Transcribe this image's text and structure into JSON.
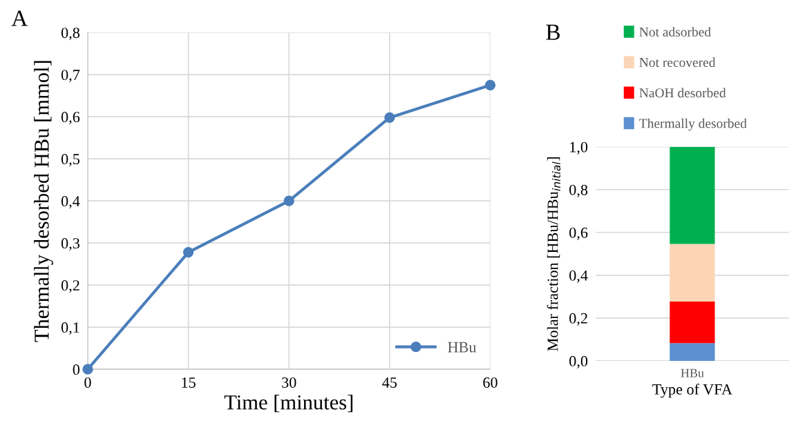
{
  "chart_data": [
    {
      "type": "line",
      "annotations": [
        "A"
      ],
      "xlabel": "Time [minutes]",
      "ylabel": "Thermally desorbed HBu [mmol]",
      "x": [
        0,
        15,
        30,
        45,
        60
      ],
      "series": [
        {
          "name": "HBu",
          "color": "#4a7ebb",
          "values": [
            0,
            0.278,
            0.4,
            0.598,
            0.675
          ]
        }
      ],
      "xlim": [
        0,
        60
      ],
      "xticks": [
        0,
        15,
        30,
        45,
        60
      ],
      "ylim": [
        0,
        0.8
      ],
      "yticks": [
        0,
        {
          "value": 0.1,
          "label": "0,1"
        },
        {
          "value": 0.2,
          "label": "0,2"
        },
        {
          "value": 0.3,
          "label": "0,3"
        },
        {
          "value": 0.4,
          "label": "0,4"
        },
        {
          "value": 0.5,
          "label": "0,5"
        },
        {
          "value": 0.6,
          "label": "0,6"
        },
        {
          "value": 0.7,
          "label": "0,7"
        },
        {
          "value": 0.8,
          "label": "0,8"
        }
      ],
      "grid": true,
      "legend": "bottom right",
      "marker": "circle",
      "line_style": "solid"
    },
    {
      "type": "bar",
      "stacked": true,
      "annotations": [
        "B"
      ],
      "xlabel": "Type of VFA",
      "ylabel": "Molar fraction [HBu/HBu$_{initial}$]",
      "categories": [
        "HBu"
      ],
      "series": [
        {
          "name": "Thermally desorbed",
          "color": "#5b8fd0",
          "values": [
            0.083
          ]
        },
        {
          "name": "NaOH desorbed",
          "color": "#ff0000",
          "values": [
            0.194
          ]
        },
        {
          "name": "Not recovered",
          "color": "#fbd5b5",
          "values": [
            0.269
          ]
        },
        {
          "name": "Not adsorbed",
          "color": "#00b050",
          "values": [
            0.454
          ]
        }
      ],
      "ylim": [
        0,
        1.0
      ],
      "yticks": [
        {
          "value": 0,
          "label": "0,0"
        },
        {
          "value": 0.2,
          "label": "0,2"
        },
        {
          "value": 0.4,
          "label": "0,4"
        },
        {
          "value": 0.6,
          "label": "0,6"
        },
        {
          "value": 0.8,
          "label": "0,8"
        },
        {
          "value": 1.0,
          "label": "1,0"
        }
      ],
      "grid": "y",
      "legend": "top"
    }
  ]
}
